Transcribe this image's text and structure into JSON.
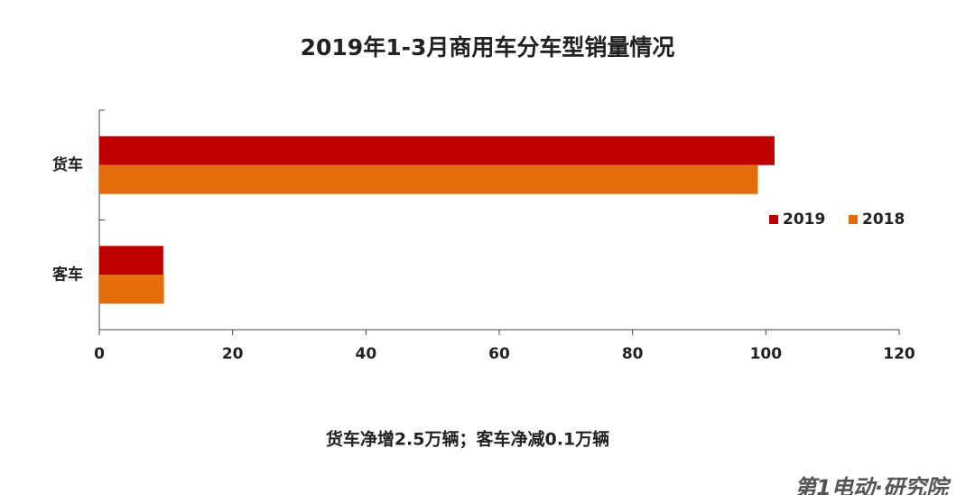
{
  "chart_data": {
    "type": "barh",
    "title": "2019年1-3月商用车分车型销量情况",
    "categories": [
      "货车",
      "客车"
    ],
    "series": [
      {
        "name": "2019",
        "color": "#c00000",
        "values": [
          101.3,
          9.6
        ]
      },
      {
        "name": "2018",
        "color": "#e46c0a",
        "values": [
          98.8,
          9.7
        ]
      }
    ],
    "xlim": [
      0,
      120
    ],
    "xticks": [
      0,
      20,
      40,
      60,
      80,
      100,
      120
    ],
    "legend": "right",
    "annotation": "货车净增2.5万辆；客车净减0.1万辆",
    "watermark": "第1电动·研究院"
  }
}
